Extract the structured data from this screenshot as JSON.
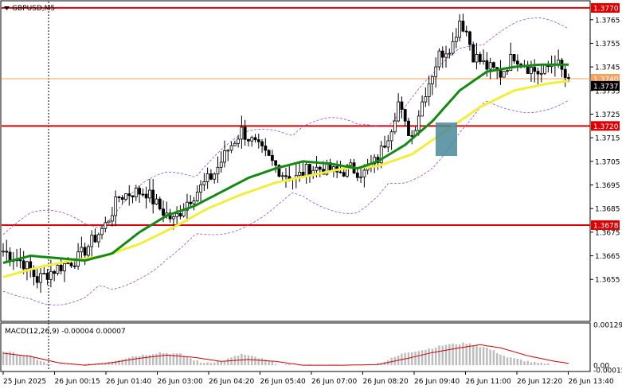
{
  "chart_data": [
    {
      "type": "candlestick",
      "title": "GBPUSD,M5",
      "y_ticks": [
        "1.3770",
        "1.3765",
        "1.3755",
        "1.3745",
        "1.3740",
        "1.3735",
        "1.3725",
        "1.3720",
        "1.3715",
        "1.3705",
        "1.3695",
        "1.3685",
        "1.3678",
        "1.3675",
        "1.3665",
        "1.3655"
      ],
      "ylim": [
        1.3648,
        1.3772
      ],
      "x_tick_labels": [
        "25 Jun 2025",
        "26 Jun 00:15",
        "26 Jun 01:40",
        "26 Jun 03:00",
        "26 Jun 04:20",
        "26 Jun 05:40",
        "26 Jun 07:00",
        "26 Jun 08:20",
        "26 Jun 09:40",
        "26 Jun 11:00",
        "26 Jun 12:20",
        "26 Jun 13:40"
      ],
      "current_price": "1.3737",
      "horizontal_levels": [
        {
          "value": 1.377,
          "label": "1.3770",
          "color": "#dd0000"
        },
        {
          "value": 1.372,
          "label": "1.3720",
          "color": "#dd0000"
        },
        {
          "value": 1.3678,
          "label": "1.3678",
          "color": "#dd0000"
        },
        {
          "value": 1.374,
          "label": "1.3740",
          "color": "#f4a460"
        }
      ],
      "close_anchors": [
        [
          0,
          1.3667
        ],
        [
          6,
          1.3662
        ],
        [
          10,
          1.3655
        ],
        [
          16,
          1.366
        ],
        [
          22,
          1.3664
        ],
        [
          30,
          1.3678
        ],
        [
          34,
          1.369
        ],
        [
          38,
          1.3692
        ],
        [
          42,
          1.3692
        ],
        [
          46,
          1.3685
        ],
        [
          50,
          1.368
        ],
        [
          54,
          1.3688
        ],
        [
          58,
          1.3694
        ],
        [
          62,
          1.37
        ],
        [
          66,
          1.371
        ],
        [
          70,
          1.3718
        ],
        [
          74,
          1.3712
        ],
        [
          78,
          1.3706
        ],
        [
          82,
          1.37
        ],
        [
          86,
          1.3698
        ],
        [
          90,
          1.3702
        ],
        [
          94,
          1.3702
        ],
        [
          98,
          1.37
        ],
        [
          102,
          1.3702
        ],
        [
          106,
          1.37
        ],
        [
          110,
          1.3706
        ],
        [
          114,
          1.372
        ],
        [
          116,
          1.373
        ],
        [
          118,
          1.372
        ],
        [
          120,
          1.3716
        ],
        [
          124,
          1.3735
        ],
        [
          128,
          1.375
        ],
        [
          132,
          1.3755
        ],
        [
          134,
          1.3765
        ],
        [
          136,
          1.376
        ],
        [
          138,
          1.375
        ],
        [
          142,
          1.3745
        ],
        [
          146,
          1.3742
        ],
        [
          150,
          1.375
        ],
        [
          154,
          1.3745
        ],
        [
          158,
          1.3742
        ],
        [
          162,
          1.3748
        ],
        [
          166,
          1.3738
        ]
      ],
      "ma_green_anchors": [
        [
          0,
          1.3662
        ],
        [
          8,
          1.3665
        ],
        [
          16,
          1.3664
        ],
        [
          24,
          1.3663
        ],
        [
          32,
          1.3666
        ],
        [
          40,
          1.3675
        ],
        [
          48,
          1.3682
        ],
        [
          56,
          1.3686
        ],
        [
          64,
          1.3692
        ],
        [
          72,
          1.3698
        ],
        [
          80,
          1.3702
        ],
        [
          88,
          1.3705
        ],
        [
          96,
          1.3704
        ],
        [
          104,
          1.3702
        ],
        [
          110,
          1.3705
        ],
        [
          118,
          1.3712
        ],
        [
          126,
          1.3722
        ],
        [
          134,
          1.3735
        ],
        [
          142,
          1.3743
        ],
        [
          150,
          1.3745
        ],
        [
          158,
          1.3746
        ],
        [
          166,
          1.3746
        ]
      ],
      "ma_yellow_anchors": [
        [
          0,
          1.3656
        ],
        [
          10,
          1.366
        ],
        [
          20,
          1.3663
        ],
        [
          30,
          1.3665
        ],
        [
          40,
          1.367
        ],
        [
          50,
          1.3677
        ],
        [
          60,
          1.3685
        ],
        [
          70,
          1.3691
        ],
        [
          80,
          1.3696
        ],
        [
          90,
          1.3699
        ],
        [
          100,
          1.3702
        ],
        [
          110,
          1.3703
        ],
        [
          120,
          1.3708
        ],
        [
          130,
          1.3718
        ],
        [
          140,
          1.3728
        ],
        [
          150,
          1.3735
        ],
        [
          160,
          1.3738
        ],
        [
          166,
          1.3739
        ]
      ],
      "macd_label": "MACD(12,26,9) -0.00004 0.00007",
      "macd_ticks": [
        "0.00129",
        "0.00",
        "-0.00015"
      ],
      "macd_ylim": [
        -0.00015,
        0.00129
      ],
      "macd_hist_anchors": [
        [
          0,
          0.00045
        ],
        [
          8,
          0.00028
        ],
        [
          14,
          0.0
        ],
        [
          22,
          0.0
        ],
        [
          30,
          8e-05
        ],
        [
          38,
          0.00028
        ],
        [
          46,
          0.0004
        ],
        [
          52,
          0.00035
        ],
        [
          58,
          8e-05
        ],
        [
          64,
          0.00012
        ],
        [
          70,
          0.00035
        ],
        [
          76,
          0.0002
        ],
        [
          82,
          0.0
        ],
        [
          90,
          0.0
        ],
        [
          100,
          0.0
        ],
        [
          108,
          0.0
        ],
        [
          112,
          0.00012
        ],
        [
          118,
          0.0004
        ],
        [
          124,
          0.0005
        ],
        [
          130,
          0.00065
        ],
        [
          136,
          0.0007
        ],
        [
          142,
          0.00055
        ],
        [
          148,
          0.00025
        ],
        [
          156,
          8e-05
        ],
        [
          162,
          0.0
        ],
        [
          166,
          0.0
        ]
      ],
      "macd_signal_anchors": [
        [
          0,
          0.00038
        ],
        [
          8,
          0.00028
        ],
        [
          16,
          8e-05
        ],
        [
          24,
          0.0
        ],
        [
          32,
          8e-05
        ],
        [
          40,
          0.00022
        ],
        [
          48,
          0.00032
        ],
        [
          56,
          0.00025
        ],
        [
          64,
          0.00012
        ],
        [
          72,
          0.00018
        ],
        [
          80,
          0.00012
        ],
        [
          88,
          0.0
        ],
        [
          100,
          0.0
        ],
        [
          110,
          2e-05
        ],
        [
          118,
          0.0002
        ],
        [
          126,
          0.0004
        ],
        [
          134,
          0.00055
        ],
        [
          140,
          0.00065
        ],
        [
          146,
          0.00055
        ],
        [
          154,
          0.0003
        ],
        [
          162,
          0.00012
        ],
        [
          166,
          6e-05
        ]
      ]
    }
  ]
}
